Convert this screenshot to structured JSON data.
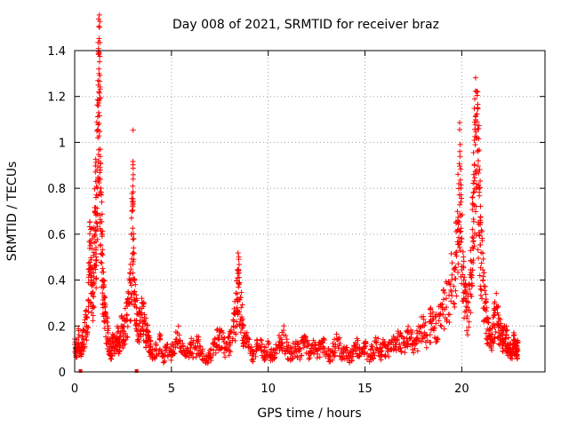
{
  "chart_data": {
    "type": "scatter",
    "title": "Day 008 of 2021, SRMTID for receiver braz",
    "xlabel": "GPS time / hours",
    "ylabel": "SRMTID / TECUs",
    "xlim": [
      0,
      24.3
    ],
    "ylim": [
      0,
      1.4
    ],
    "xticks": [
      0,
      5,
      10,
      15,
      20
    ],
    "xtick_labels": [
      "0",
      "5",
      "10",
      "15",
      "20"
    ],
    "yticks": [
      0,
      0.2,
      0.4,
      0.6,
      0.8,
      1.0,
      1.2,
      1.4
    ],
    "ytick_labels": [
      "0",
      "0.2",
      "0.4",
      "0.6",
      "0.8",
      "1",
      "1.2",
      "1.4"
    ],
    "grid": true,
    "marker": "plus",
    "color": "#ff0000",
    "series": [
      {
        "name": "SRMTID",
        "points": [
          [
            0.0,
            0.12
          ],
          [
            0.1,
            0.1
          ],
          [
            0.2,
            0.15
          ],
          [
            0.3,
            0.08
          ],
          [
            0.4,
            0.13
          ],
          [
            0.5,
            0.18
          ],
          [
            0.6,
            0.24
          ],
          [
            0.7,
            0.31
          ],
          [
            0.75,
            0.45
          ],
          [
            0.8,
            0.55
          ],
          [
            0.85,
            0.4
          ],
          [
            0.9,
            0.58
          ],
          [
            0.95,
            0.33
          ],
          [
            1.0,
            0.52
          ],
          [
            1.05,
            0.7
          ],
          [
            1.1,
            0.76
          ],
          [
            1.1,
            0.62
          ],
          [
            1.15,
            0.88
          ],
          [
            1.2,
            1.02
          ],
          [
            1.22,
            1.25
          ],
          [
            1.25,
            1.32
          ],
          [
            1.27,
            1.39
          ],
          [
            1.3,
            1.19
          ],
          [
            1.32,
            0.97
          ],
          [
            1.35,
            0.8
          ],
          [
            1.4,
            0.6
          ],
          [
            1.45,
            0.45
          ],
          [
            1.5,
            0.38
          ],
          [
            1.55,
            0.3
          ],
          [
            1.6,
            0.22
          ],
          [
            1.7,
            0.18
          ],
          [
            1.8,
            0.12
          ],
          [
            1.9,
            0.09
          ],
          [
            2.0,
            0.15
          ],
          [
            2.1,
            0.11
          ],
          [
            2.2,
            0.17
          ],
          [
            2.3,
            0.13
          ],
          [
            2.4,
            0.2
          ],
          [
            2.5,
            0.16
          ],
          [
            2.6,
            0.22
          ],
          [
            2.7,
            0.25
          ],
          [
            2.8,
            0.3
          ],
          [
            2.9,
            0.4
          ],
          [
            2.95,
            0.6
          ],
          [
            3.0,
            0.72
          ],
          [
            3.02,
            0.84
          ],
          [
            3.05,
            0.49
          ],
          [
            3.1,
            0.35
          ],
          [
            3.2,
            0.28
          ],
          [
            3.3,
            0.2
          ],
          [
            3.4,
            0.25
          ],
          [
            3.5,
            0.3
          ],
          [
            3.6,
            0.22
          ],
          [
            3.7,
            0.18
          ],
          [
            3.8,
            0.15
          ],
          [
            3.9,
            0.12
          ],
          [
            4.0,
            0.08
          ],
          [
            4.2,
            0.1
          ],
          [
            4.4,
            0.14
          ],
          [
            4.6,
            0.07
          ],
          [
            4.8,
            0.12
          ],
          [
            5.0,
            0.09
          ],
          [
            5.2,
            0.13
          ],
          [
            5.4,
            0.16
          ],
          [
            5.6,
            0.11
          ],
          [
            5.8,
            0.08
          ],
          [
            6.0,
            0.12
          ],
          [
            6.2,
            0.1
          ],
          [
            6.4,
            0.14
          ],
          [
            6.6,
            0.09
          ],
          [
            6.8,
            0.05
          ],
          [
            7.0,
            0.08
          ],
          [
            7.2,
            0.12
          ],
          [
            7.4,
            0.15
          ],
          [
            7.6,
            0.18
          ],
          [
            7.8,
            0.1
          ],
          [
            8.0,
            0.13
          ],
          [
            8.2,
            0.2
          ],
          [
            8.3,
            0.25
          ],
          [
            8.4,
            0.34
          ],
          [
            8.45,
            0.44
          ],
          [
            8.5,
            0.38
          ],
          [
            8.6,
            0.28
          ],
          [
            8.7,
            0.2
          ],
          [
            8.8,
            0.15
          ],
          [
            9.0,
            0.12
          ],
          [
            9.2,
            0.08
          ],
          [
            9.4,
            0.11
          ],
          [
            9.6,
            0.14
          ],
          [
            9.8,
            0.09
          ],
          [
            10.0,
            0.12
          ],
          [
            10.2,
            0.07
          ],
          [
            10.4,
            0.1
          ],
          [
            10.6,
            0.13
          ],
          [
            10.8,
            0.16
          ],
          [
            11.0,
            0.1
          ],
          [
            11.2,
            0.08
          ],
          [
            11.4,
            0.12
          ],
          [
            11.6,
            0.09
          ],
          [
            11.8,
            0.14
          ],
          [
            12.0,
            0.11
          ],
          [
            12.2,
            0.08
          ],
          [
            12.4,
            0.12
          ],
          [
            12.6,
            0.1
          ],
          [
            12.8,
            0.13
          ],
          [
            13.0,
            0.09
          ],
          [
            13.2,
            0.07
          ],
          [
            13.4,
            0.11
          ],
          [
            13.6,
            0.14
          ],
          [
            13.8,
            0.08
          ],
          [
            14.0,
            0.1
          ],
          [
            14.2,
            0.06
          ],
          [
            14.4,
            0.09
          ],
          [
            14.6,
            0.12
          ],
          [
            14.8,
            0.08
          ],
          [
            15.0,
            0.11
          ],
          [
            15.2,
            0.07
          ],
          [
            15.4,
            0.1
          ],
          [
            15.6,
            0.13
          ],
          [
            15.8,
            0.09
          ],
          [
            16.0,
            0.12
          ],
          [
            16.2,
            0.1
          ],
          [
            16.4,
            0.14
          ],
          [
            16.6,
            0.11
          ],
          [
            16.8,
            0.16
          ],
          [
            17.0,
            0.13
          ],
          [
            17.2,
            0.18
          ],
          [
            17.4,
            0.15
          ],
          [
            17.6,
            0.12
          ],
          [
            17.8,
            0.17
          ],
          [
            18.0,
            0.2
          ],
          [
            18.2,
            0.16
          ],
          [
            18.4,
            0.22
          ],
          [
            18.6,
            0.19
          ],
          [
            18.8,
            0.25
          ],
          [
            19.0,
            0.28
          ],
          [
            19.2,
            0.32
          ],
          [
            19.4,
            0.38
          ],
          [
            19.6,
            0.45
          ],
          [
            19.7,
            0.52
          ],
          [
            19.8,
            0.66
          ],
          [
            19.85,
            0.82
          ],
          [
            19.9,
            0.96
          ],
          [
            19.95,
            0.74
          ],
          [
            20.0,
            0.58
          ],
          [
            20.1,
            0.4
          ],
          [
            20.2,
            0.32
          ],
          [
            20.3,
            0.28
          ],
          [
            20.4,
            0.36
          ],
          [
            20.5,
            0.48
          ],
          [
            20.55,
            0.62
          ],
          [
            20.6,
            0.78
          ],
          [
            20.65,
            0.9
          ],
          [
            20.7,
            0.99
          ],
          [
            20.75,
            1.02
          ],
          [
            20.8,
            1.09
          ],
          [
            20.85,
            0.92
          ],
          [
            20.9,
            0.8
          ],
          [
            20.95,
            0.66
          ],
          [
            21.0,
            0.52
          ],
          [
            21.1,
            0.4
          ],
          [
            21.2,
            0.3
          ],
          [
            21.3,
            0.22
          ],
          [
            21.4,
            0.18
          ],
          [
            21.5,
            0.14
          ],
          [
            21.6,
            0.2
          ],
          [
            21.7,
            0.25
          ],
          [
            21.8,
            0.28
          ],
          [
            21.9,
            0.22
          ],
          [
            22.0,
            0.18
          ],
          [
            22.1,
            0.14
          ],
          [
            22.2,
            0.2
          ],
          [
            22.3,
            0.16
          ],
          [
            22.4,
            0.12
          ],
          [
            22.5,
            0.1
          ],
          [
            22.6,
            0.08
          ],
          [
            22.7,
            0.14
          ],
          [
            22.8,
            0.11
          ],
          [
            22.85,
            0.09
          ],
          [
            22.9,
            0.13
          ]
        ]
      }
    ],
    "outliers_at_zero": [
      0.3,
      3.2
    ]
  }
}
